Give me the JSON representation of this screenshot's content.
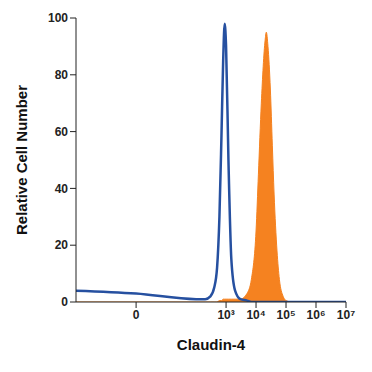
{
  "chart_data": {
    "type": "line",
    "x_label": "Claudin-4",
    "y_label": "Relative Cell Number",
    "log": "x",
    "xlim": [
      -100,
      10000000
    ],
    "xticks": [
      0,
      {
        "value": 1000,
        "label": "10³"
      },
      {
        "value": 10000,
        "label": "10⁴"
      },
      {
        "value": 100000,
        "label": "10⁵"
      },
      {
        "value": 1000000,
        "label": "10⁶"
      },
      {
        "value": 10000000,
        "label": "10⁷"
      }
    ],
    "ylim": [
      0,
      100
    ],
    "yticks": [
      0,
      20,
      40,
      60,
      80,
      100
    ],
    "grid": false,
    "x": [
      -100,
      0,
      100,
      200,
      300,
      400,
      500,
      600,
      700,
      800,
      900,
      1000,
      1200,
      1500,
      2000,
      3000,
      5000,
      7000,
      10000,
      12000,
      15000,
      20000,
      22000,
      25000,
      30000,
      35000,
      40000,
      50000,
      60000,
      80000,
      100000,
      150000,
      200000,
      500000,
      1000000,
      10000000
    ],
    "series": [
      {
        "type": "line",
        "color": "#2650a0",
        "values": [
          4,
          3,
          1,
          1,
          2,
          5,
          12,
          30,
          58,
          85,
          98,
          90,
          50,
          15,
          4,
          1,
          0.5,
          0,
          0,
          0,
          0,
          0,
          0,
          0,
          0,
          0,
          0,
          0,
          0,
          0,
          0,
          0,
          0,
          0,
          0,
          0
        ]
      },
      {
        "type": "area",
        "color": "#f58220",
        "values": [
          0,
          0,
          0,
          0,
          0,
          0,
          0,
          0.5,
          0.5,
          1,
          1,
          1,
          1,
          1,
          1,
          1,
          3,
          8,
          25,
          45,
          70,
          92,
          95,
          90,
          75,
          55,
          38,
          18,
          8,
          2,
          0.5,
          0,
          0,
          0,
          0,
          0
        ]
      }
    ]
  }
}
